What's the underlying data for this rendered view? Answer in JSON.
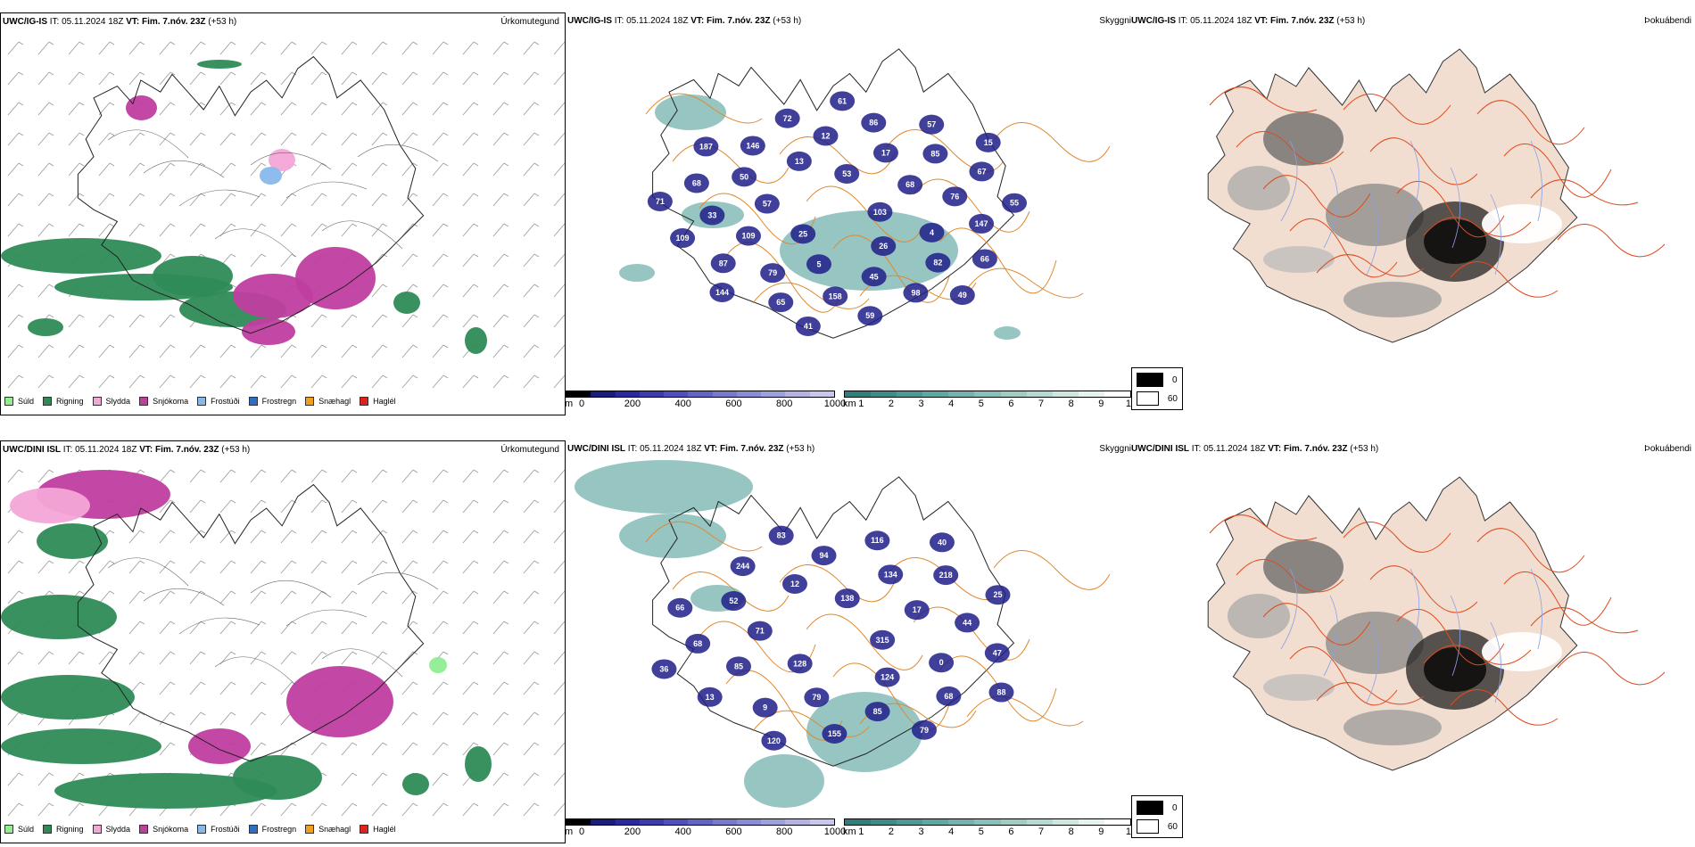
{
  "rows": [
    {
      "model": "UWC/IG-IS",
      "it_label": "IT:",
      "it_value": "05.11.2024 18Z",
      "vt_label": "VT:",
      "vt_value": "Fim. 7.nóv. 23Z",
      "lead": "(+53 h)",
      "cloud_numbers": [
        "103",
        "25",
        "53",
        "26",
        "57",
        "68",
        "5",
        "13",
        "4",
        "109",
        "17",
        "45",
        "50",
        "76",
        "79",
        "12",
        "82",
        "33",
        "85",
        "158",
        "146",
        "147",
        "87",
        "86",
        "98",
        "68",
        "67",
        "65",
        "72",
        "66",
        "109",
        "57",
        "59",
        "187",
        "55",
        "144",
        "61",
        "49",
        "71",
        "15",
        "41"
      ]
    },
    {
      "model": "UWC/DINI ISL",
      "it_label": "IT:",
      "it_value": "05.11.2024 18Z",
      "vt_label": "VT:",
      "vt_value": "Fim. 7.nóv. 23Z",
      "lead": "(+53 h)",
      "cloud_numbers": [
        "315",
        "128",
        "138",
        "124",
        "71",
        "17",
        "79",
        "12",
        "0",
        "85",
        "134",
        "85",
        "52",
        "44",
        "9",
        "94",
        "68",
        "68",
        "218",
        "155",
        "244",
        "47",
        "13",
        "116",
        "79",
        "66",
        "25",
        "120",
        "83",
        "88",
        "36",
        "40"
      ]
    }
  ],
  "panel_titles": {
    "precip": "Úrkomutegund",
    "cloud": "Skyggni",
    "fog": "Þokuábendi"
  },
  "precip_legend": [
    {
      "label": "Súld",
      "color": "#90ee90"
    },
    {
      "label": "Rigning",
      "color": "#2e8b57"
    },
    {
      "label": "Slydda",
      "color": "#f4a6d7"
    },
    {
      "label": "Snjókoma",
      "color": "#c03ea0"
    },
    {
      "label": "Frostúði",
      "color": "#87b8ec"
    },
    {
      "label": "Frostregn",
      "color": "#2f6fc0"
    },
    {
      "label": "Snæhagl",
      "color": "#f0a020"
    },
    {
      "label": "Haglél",
      "color": "#e0201c"
    }
  ],
  "cloudbase_scale": {
    "unit": "m",
    "ticks": [
      "0",
      "200",
      "400",
      "600",
      "800",
      "1000"
    ],
    "colors": [
      "#000000",
      "#1c1c7a",
      "#2a2aa0",
      "#3c3cb0",
      "#4f4fbd",
      "#6464c4",
      "#7878cc",
      "#8c8cd4",
      "#a0a0dc",
      "#b4b4e4",
      "#c8c8ec"
    ]
  },
  "visibility_scale": {
    "unit": "km",
    "ticks": [
      "1",
      "2",
      "3",
      "4",
      "5",
      "6",
      "7",
      "8",
      "9",
      "10"
    ],
    "colors": [
      "#2f7f7f",
      "#3e8c8a",
      "#4e9996",
      "#60a6a2",
      "#74b3ae",
      "#89c0ba",
      "#a0ccc6",
      "#b8d9d3",
      "#d0e6e1",
      "#e8f3f0",
      "#ffffff"
    ]
  },
  "fog_key": [
    {
      "label": "0",
      "color": "#000000"
    },
    {
      "label": "60",
      "color": "#ffffff"
    }
  ]
}
